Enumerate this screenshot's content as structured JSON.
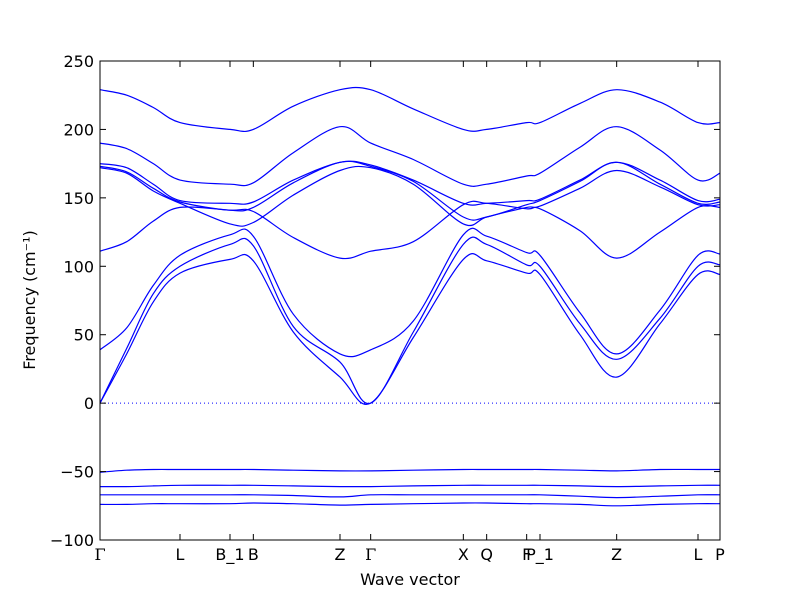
{
  "chart_data": {
    "type": "line",
    "xlabel": "Wave vector",
    "ylabel": "Frequency (cm⁻¹)",
    "ylim": [
      -100,
      250
    ],
    "yticks": [
      -100,
      -50,
      0,
      50,
      100,
      150,
      200,
      250
    ],
    "xlim": [
      0,
      9.3
    ],
    "grid": false,
    "series_color": "#0000ff",
    "zero_line": {
      "y": 0,
      "style": "dotted",
      "color": "#0000ff"
    },
    "high_symmetry_points": [
      {
        "label": "Γ",
        "x": 0
      },
      {
        "label": "L",
        "x": 1.2
      },
      {
        "label": "B_1",
        "x": 1.95
      },
      {
        "label": "B",
        "x": 2.3
      },
      {
        "label": "Z",
        "x": 3.6
      },
      {
        "label": "Γ",
        "x": 4.06
      },
      {
        "label": "X",
        "x": 5.45
      },
      {
        "label": "Q",
        "x": 5.8
      },
      {
        "label": "F",
        "x": 6.4
      },
      {
        "label": "P_1",
        "x": 6.6
      },
      {
        "label": "Z",
        "x": 7.75
      },
      {
        "label": "L",
        "x": 8.97
      },
      {
        "label": "P",
        "x": 9.3
      }
    ],
    "x": [
      0,
      0.4,
      0.8,
      1.2,
      1.95,
      2.3,
      2.9,
      3.6,
      4.06,
      4.7,
      5.45,
      5.8,
      6.4,
      6.6,
      7.2,
      7.75,
      8.4,
      8.97,
      9.3
    ],
    "series": [
      {
        "values": [
          229,
          225,
          216,
          205,
          200,
          200,
          217,
          229,
          229,
          215,
          200,
          200,
          205,
          205,
          219,
          229,
          220,
          205,
          205
        ]
      },
      {
        "values": [
          190,
          186,
          175,
          163,
          160,
          161,
          183,
          202,
          190,
          178,
          160,
          160,
          166,
          168,
          187,
          202,
          185,
          163,
          168
        ]
      },
      {
        "values": [
          175,
          172,
          160,
          148,
          146,
          147,
          163,
          176,
          174,
          163,
          146,
          146,
          148,
          149,
          163,
          176,
          163,
          148,
          149
        ]
      },
      {
        "values": [
          173,
          169,
          157,
          147,
          141,
          143,
          161,
          176,
          173,
          162,
          136,
          136,
          145,
          148,
          162,
          176,
          160,
          146,
          147
        ]
      },
      {
        "values": [
          172,
          168,
          155,
          146,
          131,
          132,
          152,
          170,
          172,
          160,
          131,
          136,
          143,
          144,
          157,
          170,
          158,
          145,
          145
        ]
      },
      {
        "values": [
          111,
          118,
          133,
          143,
          141,
          140,
          121,
          106,
          111,
          118,
          145,
          146,
          142,
          142,
          126,
          106,
          125,
          143,
          143
        ]
      },
      {
        "values": [
          39,
          55,
          86,
          108,
          123,
          122,
          65,
          36,
          39,
          60,
          123,
          122,
          110,
          108,
          66,
          36,
          68,
          108,
          109
        ]
      },
      {
        "values": [
          0,
          40,
          80,
          100,
          116,
          115,
          56,
          30,
          0,
          52,
          116,
          116,
          101,
          100,
          58,
          32,
          62,
          100,
          101
        ]
      },
      {
        "values": [
          0,
          36,
          74,
          95,
          105,
          104,
          52,
          19,
          0,
          48,
          105,
          104,
          95,
          94,
          50,
          19,
          58,
          94,
          94
        ]
      },
      {
        "values": [
          -50.5,
          -49,
          -48.5,
          -48.5,
          -48.5,
          -48.5,
          -49,
          -49.5,
          -49.5,
          -49,
          -48.5,
          -48.5,
          -48.5,
          -48.5,
          -49,
          -49.5,
          -48.5,
          -48.5,
          -48.5
        ]
      },
      {
        "values": [
          -61,
          -61,
          -60.5,
          -60,
          -60,
          -60,
          -60.5,
          -61,
          -61,
          -60.5,
          -60,
          -60,
          -60,
          -60,
          -60.5,
          -61,
          -60.5,
          -60,
          -60
        ]
      },
      {
        "values": [
          -67,
          -67,
          -67,
          -67,
          -67,
          -67,
          -67.5,
          -68.5,
          -67,
          -67,
          -67,
          -67,
          -67,
          -67,
          -68,
          -69,
          -68,
          -67,
          -67
        ]
      },
      {
        "values": [
          -74,
          -74,
          -73.5,
          -73.5,
          -73.5,
          -73,
          -73.5,
          -74.5,
          -74,
          -73.5,
          -73,
          -73,
          -73.5,
          -73.5,
          -74,
          -75,
          -74,
          -73.5,
          -73.5
        ]
      }
    ]
  }
}
